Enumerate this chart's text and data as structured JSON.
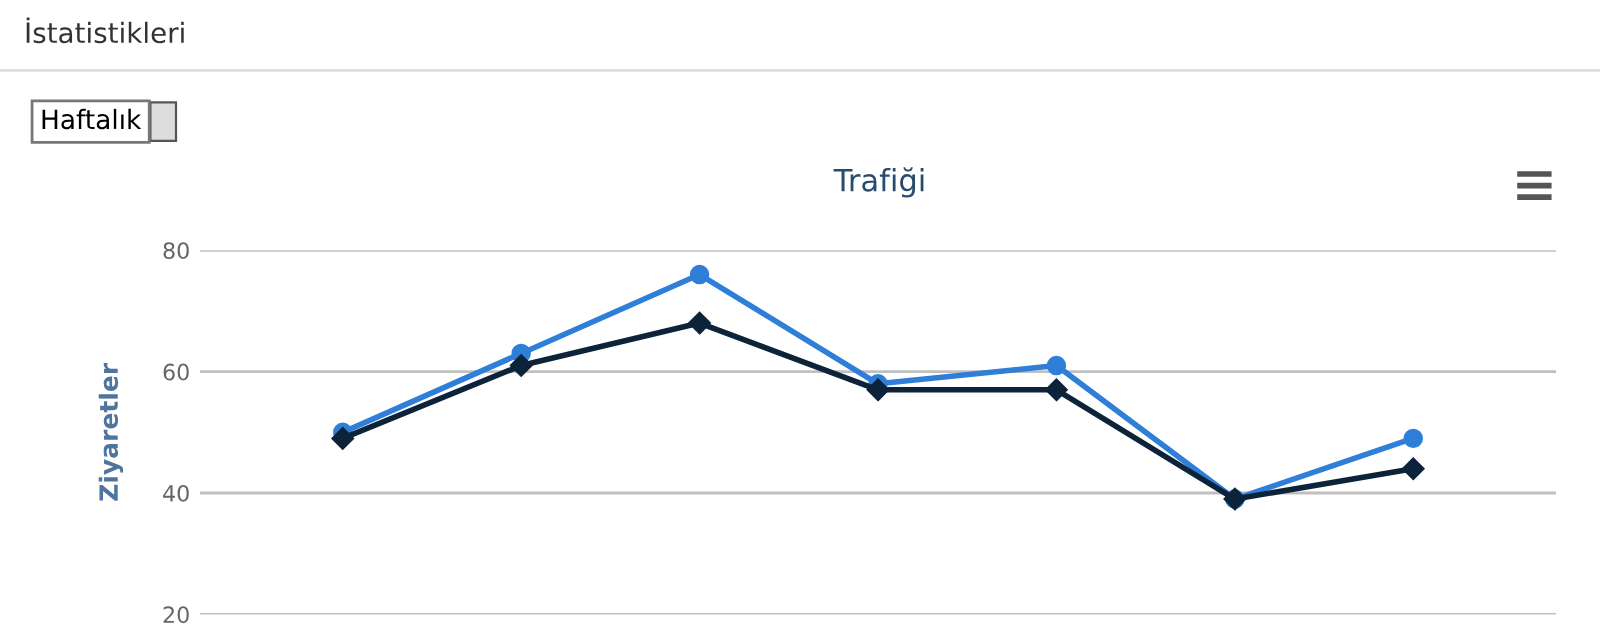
{
  "chart_data": {
    "type": "line",
    "title": "Trafiği",
    "ylabel": "Ziyaretler",
    "annotations": [
      "İstatistikleri",
      "Haftalık"
    ],
    "categories": [
      null,
      null,
      null,
      null,
      null,
      null,
      null
    ],
    "series": [
      {
        "color": "#2f7ed8",
        "marker": "circle",
        "values": [
          50,
          63,
          76,
          58,
          61,
          39,
          49
        ]
      },
      {
        "color": "#0d233a",
        "marker": "diamond",
        "values": [
          49,
          61,
          68,
          57,
          57,
          39,
          44
        ]
      }
    ],
    "ylim": [
      20,
      80
    ],
    "yticks": [
      20,
      40,
      60,
      80
    ],
    "grid": "y",
    "tick_labels": "y",
    "line_style": "solid"
  }
}
